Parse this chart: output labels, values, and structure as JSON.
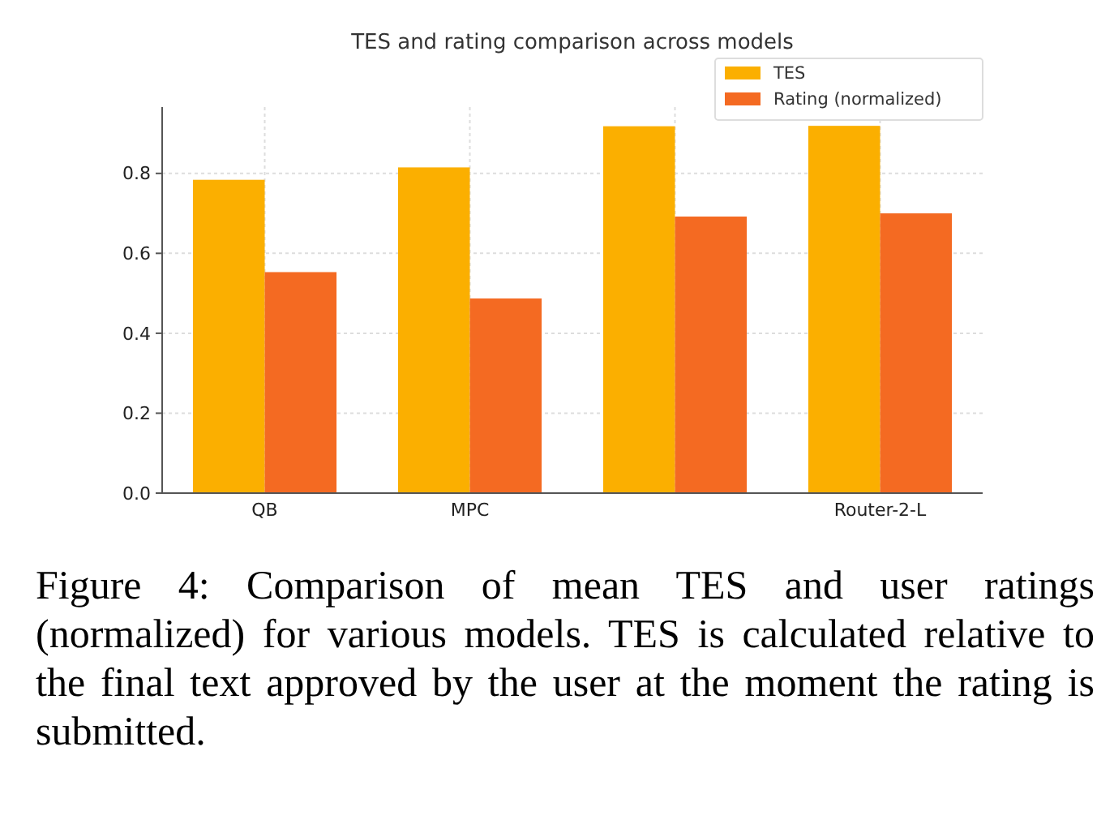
{
  "chart_data": {
    "type": "bar",
    "title": "TES and rating comparison across models",
    "categories": [
      "QB",
      "MPC",
      null,
      "Router-2-L"
    ],
    "series": [
      {
        "name": "TES",
        "color": "#fbaf00",
        "values": [
          0.784,
          0.815,
          0.918,
          0.919
        ]
      },
      {
        "name": "Rating (normalized)",
        "color": "#f46a22",
        "values": [
          0.553,
          0.487,
          0.692,
          0.7
        ]
      }
    ],
    "ylim": [
      0,
      0.966
    ],
    "yticks": [
      {
        "value": 0,
        "label": "0.0"
      },
      0.2,
      0.4,
      0.6,
      0.8
    ],
    "grid": true,
    "legend": "top right",
    "annotations": [
      "Figure 4: Comparison of mean TES and user ratings (normalized) for various models. TES is calculated relative to the final text approved by the user at the moment the rating is submitted."
    ]
  }
}
